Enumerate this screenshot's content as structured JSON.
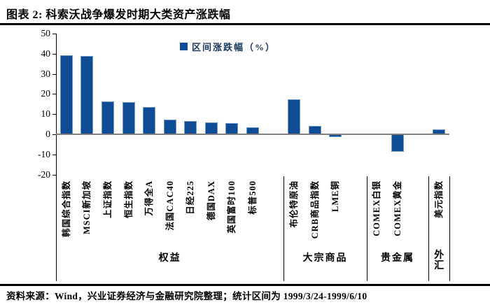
{
  "title": "图表 2:  科索沃战争爆发时期大类资产涨跌幅",
  "legend": {
    "label": "区间涨跌幅（%）"
  },
  "footer": {
    "source": "资料来源：Wind，兴业证券经济与金融研究院整理；统计区间为 1999/3/24-1999/6/10"
  },
  "colors": {
    "bar": "#0E4D96",
    "legend_text": "#17375E",
    "zero_line": "#808080",
    "axis": "#000000"
  },
  "chart_data": {
    "type": "bar",
    "title": "科索沃战争爆发时期大类资产涨跌幅",
    "ylabel": "区间涨跌幅（%）",
    "ylim": [
      -20,
      50
    ],
    "yticks": [
      50,
      40,
      30,
      20,
      10,
      0,
      -10,
      -20
    ],
    "grid": false,
    "legend_position": "top",
    "groups": [
      {
        "name": "权益",
        "categories": [
          "韩国综合指数",
          "MSCI新加坡",
          "上证指数",
          "恒生指数",
          "万得全A",
          "法国CAC40",
          "日经225",
          "德国DAX",
          "英国富时100",
          "标普500"
        ],
        "values": [
          39.3,
          38.9,
          16.4,
          16.1,
          13.4,
          7.2,
          6.7,
          5.8,
          5.4,
          3.3
        ]
      },
      {
        "name": "大宗商品",
        "categories": [
          "布伦特原油",
          "CRB商品指数",
          "LME铜"
        ],
        "values": [
          17.4,
          4.0,
          -1.5
        ]
      },
      {
        "name": "贵金属",
        "categories": [
          "COMEX白银",
          "COMEX黄金"
        ],
        "values": [
          -0.3,
          -8.6
        ]
      },
      {
        "name": "外汇",
        "categories": [
          "美元指数"
        ],
        "values": [
          2.5
        ],
        "label_orientation": "vertical"
      }
    ]
  }
}
